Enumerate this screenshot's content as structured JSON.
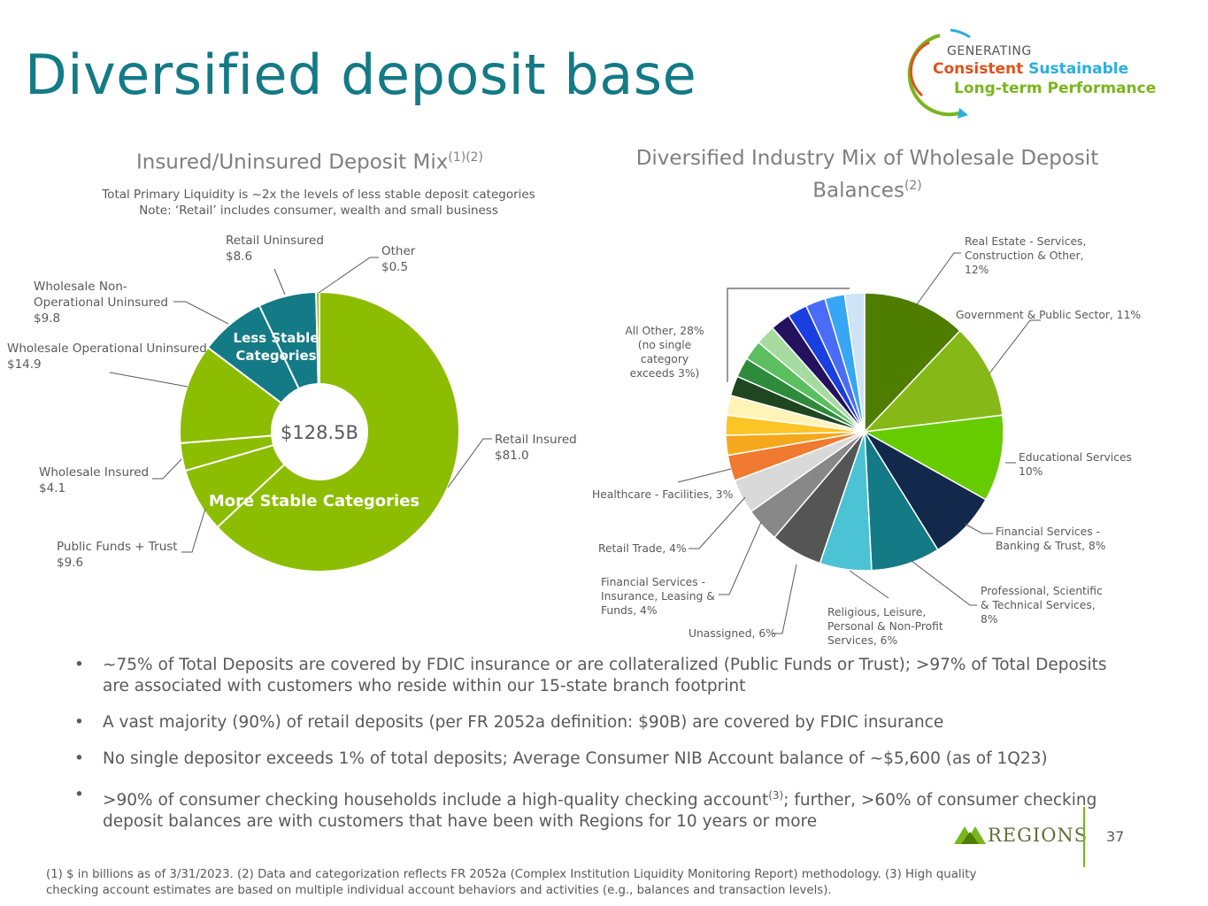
{
  "page": {
    "title": "Diversified deposit base",
    "page_number": "37"
  },
  "logo": {
    "line1": "GENERATING",
    "word1": "Consistent",
    "word2": "Sustainable",
    "line3": "Long-term Performance",
    "colors": {
      "consistent": "#e0521b",
      "sustainable": "#2aaee0",
      "longterm": "#7ab51d"
    }
  },
  "left_chart_header": {
    "title": "Insured/Uninsured Deposit Mix",
    "title_sup": "(1)(2)",
    "subtitle1": "Total Primary Liquidity is ~2x the levels of less stable deposit categories",
    "subtitle2": "Note: ‘Retail’ includes consumer, wealth and small business"
  },
  "right_chart_header": {
    "title_line1": "Diversified Industry Mix of Wholesale Deposit",
    "title_line2": "Balances",
    "title_sup": "(2)"
  },
  "chart_data": [
    {
      "type": "pie",
      "variant": "donut",
      "center_label": "$128.5B",
      "segments": [
        {
          "name": "Retail Insured",
          "value": 81.0,
          "label": "$81.0",
          "color": "#8cbd00"
        },
        {
          "name": "Public Funds + Trust",
          "value": 9.6,
          "label": "$9.6",
          "color": "#8cbd00"
        },
        {
          "name": "Wholesale Insured",
          "value": 4.1,
          "label": "$4.1",
          "color": "#8cbd00"
        },
        {
          "name": "Wholesale Operational Uninsured",
          "value": 14.9,
          "label": "$14.9",
          "color": "#8cbd00"
        },
        {
          "name": "Wholesale Non-Operational Uninsured",
          "value": 9.8,
          "label": "$9.8",
          "color": "#137a86"
        },
        {
          "name": "Retail Uninsured",
          "value": 8.6,
          "label": "$8.6",
          "color": "#137a86"
        },
        {
          "name": "Other",
          "value": 0.5,
          "label": "$0.5",
          "color": "#8cbd00"
        }
      ],
      "group_labels": {
        "less_stable": "Less Stable Categories",
        "more_stable": "More Stable Categories"
      }
    },
    {
      "type": "pie",
      "segments": [
        {
          "name": "Real Estate - Services, Construction & Other",
          "value": 12,
          "color": "#4f7d00"
        },
        {
          "name": "Government & Public Sector",
          "value": 11,
          "color": "#86b817"
        },
        {
          "name": "Educational Services",
          "value": 10,
          "color": "#66cc00"
        },
        {
          "name": "Financial Services - Banking & Trust",
          "value": 8,
          "color": "#13294b"
        },
        {
          "name": "Professional, Scientific & Technical Services",
          "value": 8,
          "color": "#137a86"
        },
        {
          "name": "Religious, Leisure, Personal & Non-Profit Services",
          "value": 6,
          "color": "#4bc3d4"
        },
        {
          "name": "Unassigned",
          "value": 6,
          "color": "#555555"
        },
        {
          "name": "Financial Services - Insurance, Leasing & Funds",
          "value": 4,
          "color": "#888888"
        },
        {
          "name": "Retail Trade",
          "value": 4,
          "color": "#d9d9d9"
        },
        {
          "name": "Healthcare - Facilities",
          "value": 3,
          "color": "#f07a30"
        },
        {
          "name": "",
          "value": 2.3,
          "color": "#f5a81c"
        },
        {
          "name": "",
          "value": 2.3,
          "color": "#fcc425"
        },
        {
          "name": "",
          "value": 2.3,
          "color": "#fff3b8"
        },
        {
          "name": "",
          "value": 2.3,
          "color": "#1e4620"
        },
        {
          "name": "",
          "value": 2.3,
          "color": "#2e8b3c"
        },
        {
          "name": "",
          "value": 2.3,
          "color": "#5cbf5f"
        },
        {
          "name": "",
          "value": 2.3,
          "color": "#a6dba0"
        },
        {
          "name": "",
          "value": 2.3,
          "color": "#24125e"
        },
        {
          "name": "",
          "value": 2.3,
          "color": "#1a3fe0"
        },
        {
          "name": "",
          "value": 2.3,
          "color": "#4a6cf7"
        },
        {
          "name": "",
          "value": 2.3,
          "color": "#36a6f5"
        },
        {
          "name": "",
          "value": 2.3,
          "color": "#cfe3f7"
        }
      ],
      "labels": [
        {
          "lines": [
            "Real Estate - Services,",
            "Construction & Other,",
            "12%"
          ]
        },
        {
          "lines": [
            "Government & Public Sector, 11%"
          ]
        },
        {
          "lines": [
            "Educational Services",
            "10%"
          ]
        },
        {
          "lines": [
            "Financial Services -",
            "Banking & Trust, 8%"
          ]
        },
        {
          "lines": [
            "Professional, Scientific",
            "& Technical Services,",
            "8%"
          ]
        },
        {
          "lines": [
            "Religious, Leisure,",
            "Personal & Non-Profit",
            "Services, 6%"
          ]
        },
        {
          "lines": [
            "Unassigned, 6%"
          ]
        },
        {
          "lines": [
            "Financial Services -",
            "Insurance, Leasing &",
            "Funds, 4%"
          ]
        },
        {
          "lines": [
            "Retail Trade, 4%"
          ]
        },
        {
          "lines": [
            "Healthcare - Facilities, 3%"
          ]
        },
        {
          "lines": [
            "All Other, 28%",
            "(no single",
            "category",
            "exceeds 3%)"
          ]
        }
      ]
    }
  ],
  "left_labels": [
    {
      "lines": [
        "Retail Insured",
        "$81.0"
      ]
    },
    {
      "lines": [
        "Public Funds + Trust",
        "$9.6"
      ]
    },
    {
      "lines": [
        "Wholesale Insured",
        "$4.1"
      ]
    },
    {
      "lines": [
        "Wholesale Operational Uninsured",
        "$14.9"
      ]
    },
    {
      "lines": [
        "Wholesale Non-",
        "Operational Uninsured",
        "$9.8"
      ]
    },
    {
      "lines": [
        "Retail Uninsured",
        "$8.6"
      ]
    },
    {
      "lines": [
        "Other",
        "$0.5"
      ]
    }
  ],
  "bullets": [
    {
      "text": "~75% of Total Deposits are covered by FDIC insurance or are collateralized (Public Funds or Trust); >97% of Total Deposits are associated with customers who reside within our 15-state branch footprint"
    },
    {
      "text": "A vast majority (90%) of retail deposits (per FR 2052a definition: $90B) are covered by FDIC insurance"
    },
    {
      "text": "No single depositor exceeds 1% of total deposits; Average Consumer NIB Account balance of ~$5,600 (as of 1Q23)"
    },
    {
      "pre": ">90% of consumer checking households include a high-quality checking account",
      "sup": "(3)",
      "post": "; further, >60% of consumer checking deposit balances are with customers that have been with Regions for 10 years or more"
    }
  ],
  "footnote": "(1) $ in billions as of 3/31/2023. (2) Data and categorization reflects FR 2052a (Complex Institution Liquidity Monitoring Report) methodology. (3) High quality checking account estimates are based on multiple individual account behaviors and activities (e.g., balances and transaction levels).",
  "brand": {
    "name": "REGIONS",
    "color": "#5f6f3a",
    "accent": "#7ab51d"
  }
}
